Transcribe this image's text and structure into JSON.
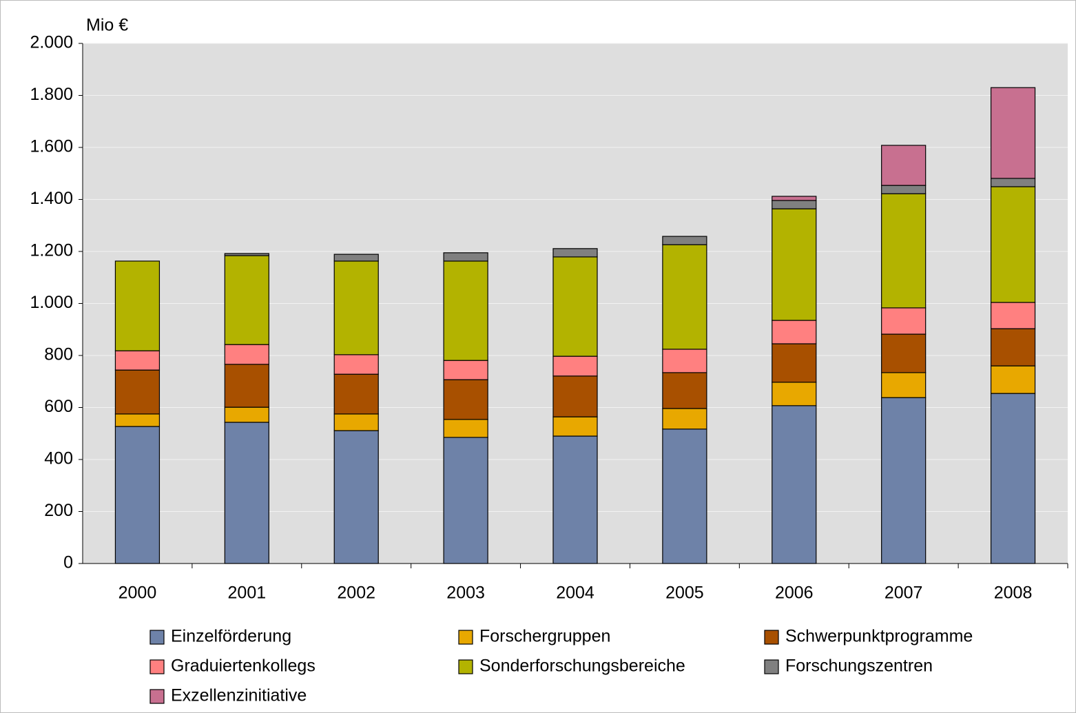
{
  "chart_data": {
    "type": "stacked_bar",
    "y_axis_label": "Mio €",
    "categories": [
      "2000",
      "2001",
      "2002",
      "2003",
      "2004",
      "2005",
      "2006",
      "2007",
      "2008"
    ],
    "series": [
      {
        "name": "Einzelförderung",
        "color": "#6e82a8",
        "values": [
          527,
          543,
          511,
          485,
          490,
          517,
          607,
          638,
          654
        ]
      },
      {
        "name": "Forschergruppen",
        "color": "#e8a800",
        "values": [
          48,
          58,
          64,
          69,
          74,
          79,
          90,
          96,
          106
        ]
      },
      {
        "name": "Schwerpunktprogramme",
        "color": "#a85000",
        "values": [
          169,
          165,
          153,
          153,
          157,
          138,
          148,
          148,
          143
        ]
      },
      {
        "name": "Graduiertenkollegs",
        "color": "#ff8080",
        "values": [
          74,
          76,
          75,
          74,
          76,
          90,
          90,
          101,
          101
        ]
      },
      {
        "name": "Sonderforschungsbereiche",
        "color": "#b3b300",
        "values": [
          345,
          342,
          360,
          382,
          382,
          402,
          429,
          439,
          445
        ]
      },
      {
        "name": "Forschungszentren",
        "color": "#808080",
        "values": [
          0,
          8,
          26,
          32,
          32,
          32,
          32,
          32,
          32
        ]
      },
      {
        "name": "Exzellenzinitiative",
        "color": "#c87090",
        "values": [
          0,
          0,
          0,
          0,
          0,
          0,
          16,
          154,
          349
        ]
      }
    ],
    "ylim": [
      0,
      2000
    ],
    "yticks": [
      0,
      200,
      400,
      600,
      800,
      {
        "value": 1000,
        "label": "1.000"
      },
      {
        "value": 1200,
        "label": "1.200"
      },
      {
        "value": 1400,
        "label": "1.400"
      },
      {
        "value": 1600,
        "label": "1.600"
      },
      {
        "value": 1800,
        "label": "1.800"
      },
      {
        "value": 2000,
        "label": "2.000"
      }
    ],
    "grid": true,
    "legend": "bottom"
  }
}
